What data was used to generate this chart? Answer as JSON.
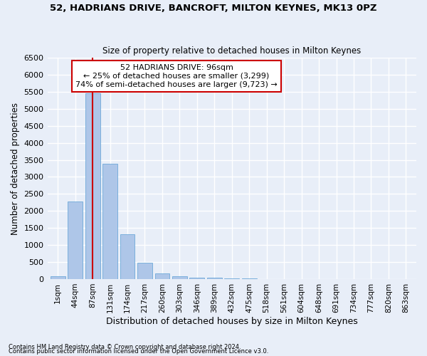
{
  "title1": "52, HADRIANS DRIVE, BANCROFT, MILTON KEYNES, MK13 0PZ",
  "title2": "Size of property relative to detached houses in Milton Keynes",
  "xlabel": "Distribution of detached houses by size in Milton Keynes",
  "ylabel": "Number of detached properties",
  "categories": [
    "1sqm",
    "44sqm",
    "87sqm",
    "131sqm",
    "174sqm",
    "217sqm",
    "260sqm",
    "303sqm",
    "346sqm",
    "389sqm",
    "432sqm",
    "475sqm",
    "518sqm",
    "561sqm",
    "604sqm",
    "648sqm",
    "691sqm",
    "734sqm",
    "777sqm",
    "820sqm",
    "863sqm"
  ],
  "values": [
    75,
    2270,
    5450,
    3380,
    1310,
    475,
    160,
    80,
    50,
    35,
    15,
    10,
    5,
    3,
    2,
    1,
    1,
    0,
    0,
    0,
    0
  ],
  "bar_color": "#aec6e8",
  "bar_edge_color": "#5a9fd4",
  "vline_x": 2,
  "vline_color": "#cc0000",
  "annotation_title": "52 HADRIANS DRIVE: 96sqm",
  "annotation_line1": "← 25% of detached houses are smaller (3,299)",
  "annotation_line2": "74% of semi-detached houses are larger (9,723) →",
  "annotation_box_color": "#ffffff",
  "annotation_box_edge": "#cc0000",
  "ylim": [
    0,
    6500
  ],
  "yticks": [
    0,
    500,
    1000,
    1500,
    2000,
    2500,
    3000,
    3500,
    4000,
    4500,
    5000,
    5500,
    6000,
    6500
  ],
  "footer1": "Contains HM Land Registry data © Crown copyright and database right 2024.",
  "footer2": "Contains public sector information licensed under the Open Government Licence v3.0.",
  "bg_color": "#e8eef8",
  "grid_color": "#ffffff"
}
